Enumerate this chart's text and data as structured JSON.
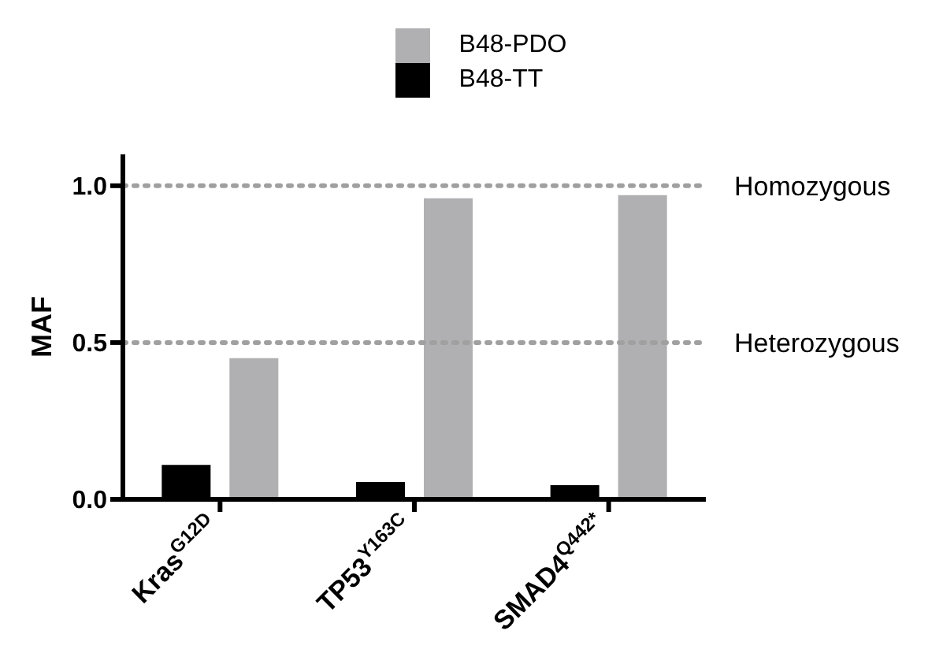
{
  "chart_data": {
    "type": "bar",
    "ylabel": "MAF",
    "categories": [
      "Kras$^{G12D}$",
      "TP53$^{Y163C}$",
      "SMAD4$^{Q442*}$"
    ],
    "series": [
      {
        "name": "B48-TT",
        "color": "#000000",
        "values": [
          0.11,
          0.055,
          0.045
        ]
      },
      {
        "name": "B48-PDO",
        "color": "#b0b0b2",
        "values": [
          0.45,
          0.96,
          0.97
        ]
      }
    ],
    "ylim": [
      0,
      1.1
    ],
    "yticks": [
      {
        "value": 0,
        "label": "0.0"
      },
      {
        "value": 0.5,
        "label": "0.5"
      },
      {
        "value": 1,
        "label": "1.0"
      }
    ],
    "ref_lines": [
      {
        "axis": "y",
        "value": 1,
        "label": "Homozygous",
        "color": "#a0a0a0",
        "line_style": "dotted"
      },
      {
        "axis": "y",
        "value": 0.5,
        "label": "Heterozygous",
        "color": "#a0a0a0",
        "line_style": "dotted"
      }
    ],
    "grid": false,
    "legend": "top"
  }
}
